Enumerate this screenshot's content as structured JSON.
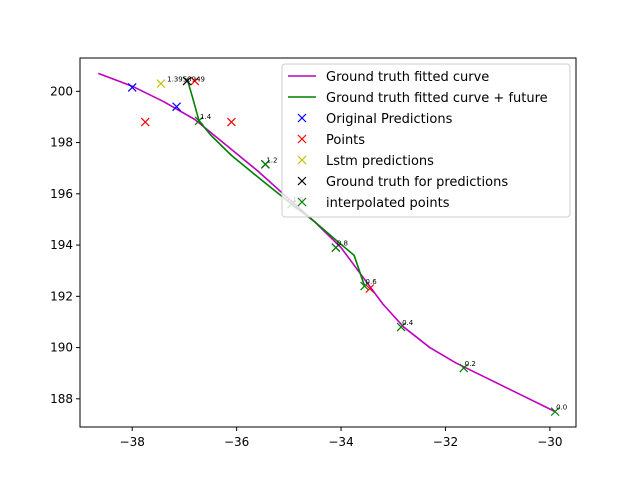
{
  "chart_data": {
    "type": "line",
    "title": "",
    "xlabel": "",
    "ylabel": "",
    "xlim": [
      -39.0,
      -29.5
    ],
    "ylim": [
      186.9,
      201.3
    ],
    "xticks": [
      -38,
      -36,
      -34,
      -32,
      -30
    ],
    "yticks": [
      188,
      190,
      192,
      194,
      196,
      198,
      200
    ],
    "grid": false,
    "legend_position": "top-right",
    "series": [
      {
        "name": "Ground truth fitted curve",
        "kind": "line",
        "color": "#bf00bf",
        "x": [
          -38.65,
          -38.0,
          -37.4,
          -36.8,
          -36.2,
          -35.6,
          -35.0,
          -34.5,
          -34.0,
          -33.6,
          -33.2,
          -32.8,
          -32.3,
          -31.8,
          -31.2,
          -30.6,
          -29.9
        ],
        "y": [
          200.7,
          200.2,
          199.6,
          198.9,
          197.9,
          196.9,
          195.8,
          194.9,
          193.9,
          192.8,
          191.7,
          190.8,
          190.0,
          189.4,
          188.8,
          188.2,
          187.5
        ]
      },
      {
        "name": "Ground truth fitted curve + future",
        "kind": "line",
        "color": "#008000",
        "x": [
          -36.95,
          -36.85,
          -36.72,
          -36.5,
          -36.1,
          -35.5,
          -34.95,
          -34.5,
          -34.1,
          -33.75,
          -33.55
        ],
        "y": [
          200.5,
          199.8,
          198.85,
          198.3,
          197.5,
          196.5,
          195.6,
          194.9,
          194.2,
          193.6,
          192.4
        ]
      },
      {
        "name": "Original Predictions",
        "kind": "markers",
        "color": "#0000ff",
        "x": [
          -38.0,
          -37.15
        ],
        "y": [
          200.15,
          199.4
        ]
      },
      {
        "name": "Points",
        "kind": "markers",
        "color": "#ff0000",
        "x": [
          -37.75,
          -36.8,
          -36.1,
          -33.45
        ],
        "y": [
          198.8,
          200.4,
          198.8,
          192.3
        ]
      },
      {
        "name": "Lstm predictions",
        "kind": "markers",
        "color": "#bfbf00",
        "x": [
          -37.45
        ],
        "y": [
          200.3
        ]
      },
      {
        "name": "Ground truth for predictions",
        "kind": "markers",
        "color": "#000000",
        "x": [
          -36.95,
          -35.45,
          -34.1
        ],
        "y": [
          200.4,
          197.15,
          193.9
        ]
      },
      {
        "name": "interpolated points",
        "kind": "markers",
        "color": "#008000",
        "x": [
          -36.72,
          -35.45,
          -34.95,
          -34.1,
          -33.55,
          -32.85,
          -31.65,
          -29.9
        ],
        "y": [
          198.85,
          197.15,
          195.6,
          193.9,
          192.4,
          190.8,
          189.2,
          187.5
        ]
      }
    ],
    "annotations": [
      {
        "text": "1.4",
        "x": -36.72,
        "y": 198.85
      },
      {
        "text": "1.2",
        "x": -35.45,
        "y": 197.15
      },
      {
        "text": "1.0",
        "x": -34.95,
        "y": 195.6
      },
      {
        "text": "0.8",
        "x": -34.1,
        "y": 193.9
      },
      {
        "text": "0.6",
        "x": -33.55,
        "y": 192.4
      },
      {
        "text": "0.4",
        "x": -32.85,
        "y": 190.8
      },
      {
        "text": "0.2",
        "x": -31.65,
        "y": 189.2
      },
      {
        "text": "0.0",
        "x": -29.9,
        "y": 187.5
      },
      {
        "text": "1.3950949",
        "x": -37.35,
        "y": 200.3
      }
    ]
  }
}
